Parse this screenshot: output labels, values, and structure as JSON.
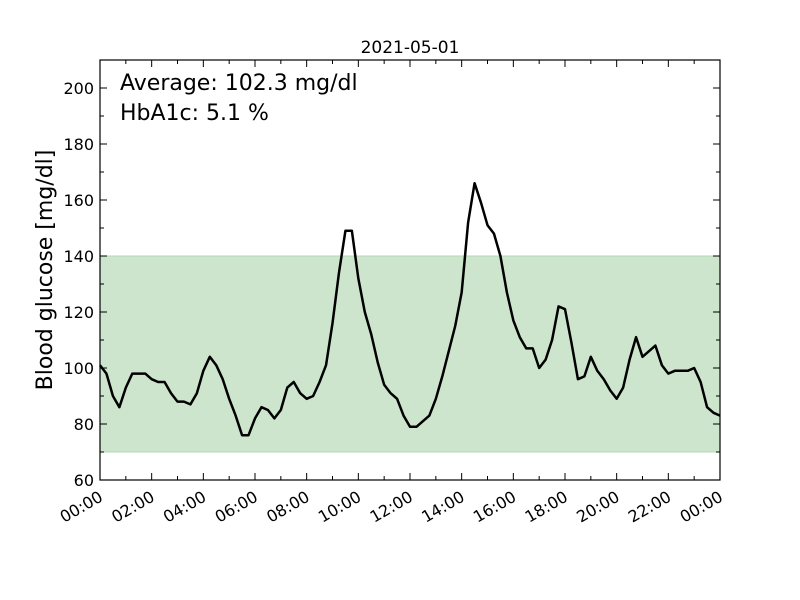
{
  "chart_data": {
    "type": "line",
    "title": "2021-05-01",
    "ylabel": "Blood glucose [mg/dl]",
    "xlabel": "",
    "ylim": [
      60,
      210
    ],
    "xlim_hours": [
      0,
      24
    ],
    "yticks": [
      60,
      80,
      100,
      120,
      140,
      160,
      180,
      200
    ],
    "xtick_labels": [
      "00:00",
      "02:00",
      "04:00",
      "06:00",
      "08:00",
      "10:00",
      "12:00",
      "14:00",
      "16:00",
      "18:00",
      "20:00",
      "22:00",
      "00:00"
    ],
    "target_range": {
      "low": 70,
      "high": 140,
      "color": "#cde5cd",
      "edge_color": "#b3d8b3"
    },
    "line_color": "#000000",
    "grid": false,
    "annotations": [
      "Average: 102.3 mg/dl",
      "HbA1c: 5.1 %"
    ],
    "series": [
      {
        "x_hours": [
          0.0,
          0.25,
          0.5,
          0.75,
          1.0,
          1.25,
          1.5,
          1.75,
          2.0,
          2.25,
          2.5,
          2.75,
          3.0,
          3.25,
          3.5,
          3.75,
          4.0,
          4.25,
          4.5,
          4.75,
          5.0,
          5.25,
          5.5,
          5.75,
          6.0,
          6.25,
          6.5,
          6.75,
          7.0,
          7.25,
          7.5,
          7.75,
          8.0,
          8.25,
          8.5,
          8.75,
          9.0,
          9.25,
          9.5,
          9.75,
          10.0,
          10.25,
          10.5,
          10.75,
          11.0,
          11.25,
          11.5,
          11.75,
          12.0,
          12.25,
          12.5,
          12.75,
          13.0,
          13.25,
          13.5,
          13.75,
          14.0,
          14.25,
          14.5,
          14.75,
          15.0,
          15.25,
          15.5,
          15.75,
          16.0,
          16.25,
          16.5,
          16.75,
          17.0,
          17.25,
          17.5,
          17.75,
          18.0,
          18.25,
          18.5,
          18.75,
          19.0,
          19.25,
          19.5,
          19.75,
          20.0,
          20.25,
          20.5,
          20.75,
          21.0,
          21.25,
          21.5,
          21.75,
          22.0,
          22.25,
          22.5,
          22.75,
          23.0,
          23.25,
          23.5,
          23.75,
          24.0
        ],
        "values": [
          101,
          98,
          90,
          86,
          93,
          98,
          98,
          98,
          96,
          95,
          95,
          91,
          88,
          88,
          87,
          91,
          99,
          104,
          101,
          96,
          89,
          83,
          76,
          76,
          82,
          86,
          85,
          82,
          85,
          93,
          95,
          91,
          89,
          90,
          95,
          101,
          116,
          134,
          149,
          149,
          132,
          120,
          112,
          102,
          94,
          91,
          89,
          83,
          79,
          79,
          81,
          83,
          89,
          97,
          106,
          115,
          127,
          152,
          166,
          159,
          151,
          148,
          140,
          127,
          117,
          111,
          107,
          107,
          100,
          103,
          110,
          122,
          121,
          109,
          96,
          97,
          104,
          99,
          96,
          92,
          89,
          93,
          103,
          111,
          104,
          106,
          108,
          101,
          98,
          99,
          99,
          99,
          100,
          95,
          86,
          84,
          83
        ]
      }
    ]
  }
}
